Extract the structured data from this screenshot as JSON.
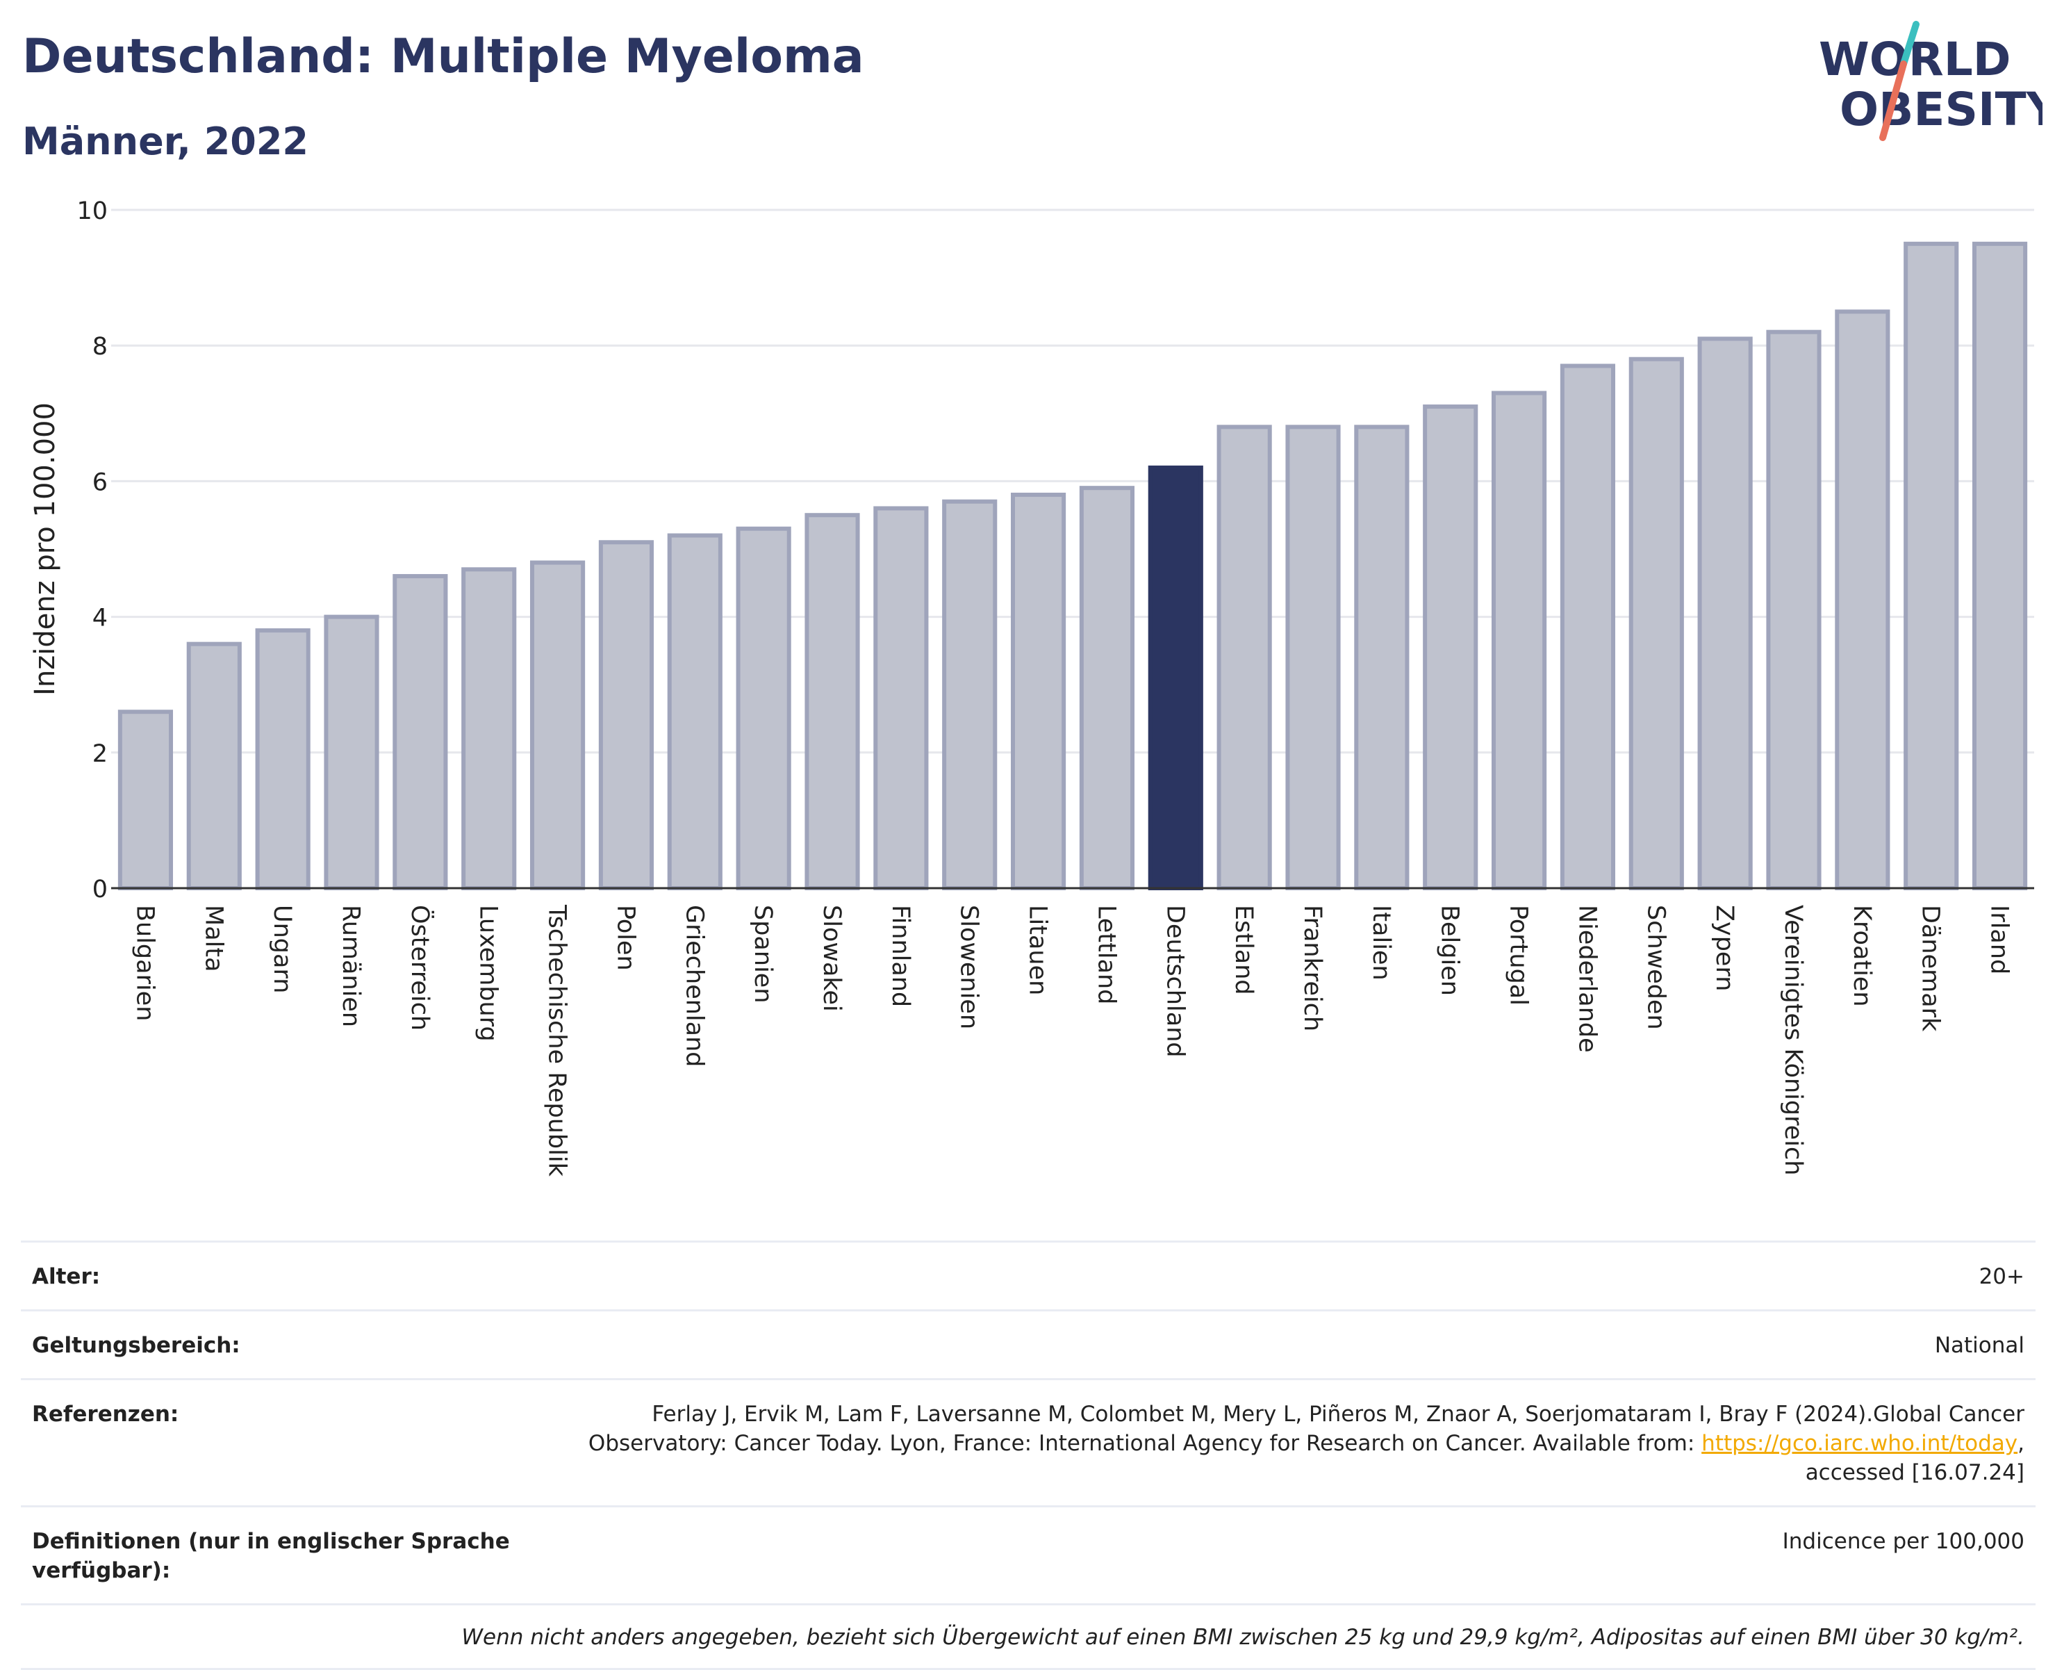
{
  "header": {
    "title": "Deutschland: Multiple Myeloma",
    "subtitle": "Männer, 2022"
  },
  "logo": {
    "line1": "WORLD",
    "line2": "OBESITY"
  },
  "colors": {
    "bar": "#bfc2ce",
    "bar_border": "#9fa4bb",
    "highlight": "#2b3561",
    "grid": "#e6e7ec",
    "axis": "#333333"
  },
  "chart_data": {
    "type": "bar",
    "title": "Deutschland: Multiple Myeloma",
    "subtitle": "Männer, 2022",
    "xlabel": "",
    "ylabel": "Inzidenz pro 100.000",
    "ylim": [
      0,
      10
    ],
    "yticks": [
      0,
      2,
      4,
      6,
      8,
      10
    ],
    "grid": true,
    "highlight": "Deutschland",
    "categories": [
      "Bulgarien",
      "Malta",
      "Ungarn",
      "Rumänien",
      "Österreich",
      "Luxemburg",
      "Tschechische Republik",
      "Polen",
      "Griechenland",
      "Spanien",
      "Slowakei",
      "Finnland",
      "Slowenien",
      "Litauen",
      "Lettland",
      "Deutschland",
      "Estland",
      "Frankreich",
      "Italien",
      "Belgien",
      "Portugal",
      "Niederlande",
      "Schweden",
      "Zypern",
      "Vereinigtes Königreich",
      "Kroatien",
      "Dänemark",
      "Irland"
    ],
    "values": [
      2.6,
      3.6,
      3.8,
      4.0,
      4.6,
      4.7,
      4.8,
      5.1,
      5.2,
      5.3,
      5.5,
      5.6,
      5.7,
      5.8,
      5.9,
      6.2,
      6.8,
      6.8,
      6.8,
      7.1,
      7.3,
      7.7,
      7.8,
      8.1,
      8.2,
      8.5,
      9.5,
      9.5
    ]
  },
  "info": {
    "age_label": "Alter:",
    "age_value": "20+",
    "scope_label": "Geltungsbereich:",
    "scope_value": "National",
    "ref_label": "Referenzen:",
    "ref_text_1": "Ferlay J, Ervik M, Lam F, Laversanne M, Colombet M, Mery L, Piñeros M, Znaor A, Soerjomataram I, Bray F (2024).Global Cancer Observatory: Cancer Today. Lyon, France: International Agency for Research on Cancer. Available from: ",
    "ref_link": "https://gco.iarc.who.int/today",
    "ref_text_2": ", accessed [16.07.24]",
    "def_label": "Definitionen (nur in englischer Sprache verfügbar):",
    "def_value": "Indicence per 100,000",
    "note": "Wenn nicht anders angegeben, bezieht sich Übergewicht auf einen BMI zwischen 25 kg und 29,9 kg/m², Adipositas auf einen BMI über 30 kg/m²."
  }
}
